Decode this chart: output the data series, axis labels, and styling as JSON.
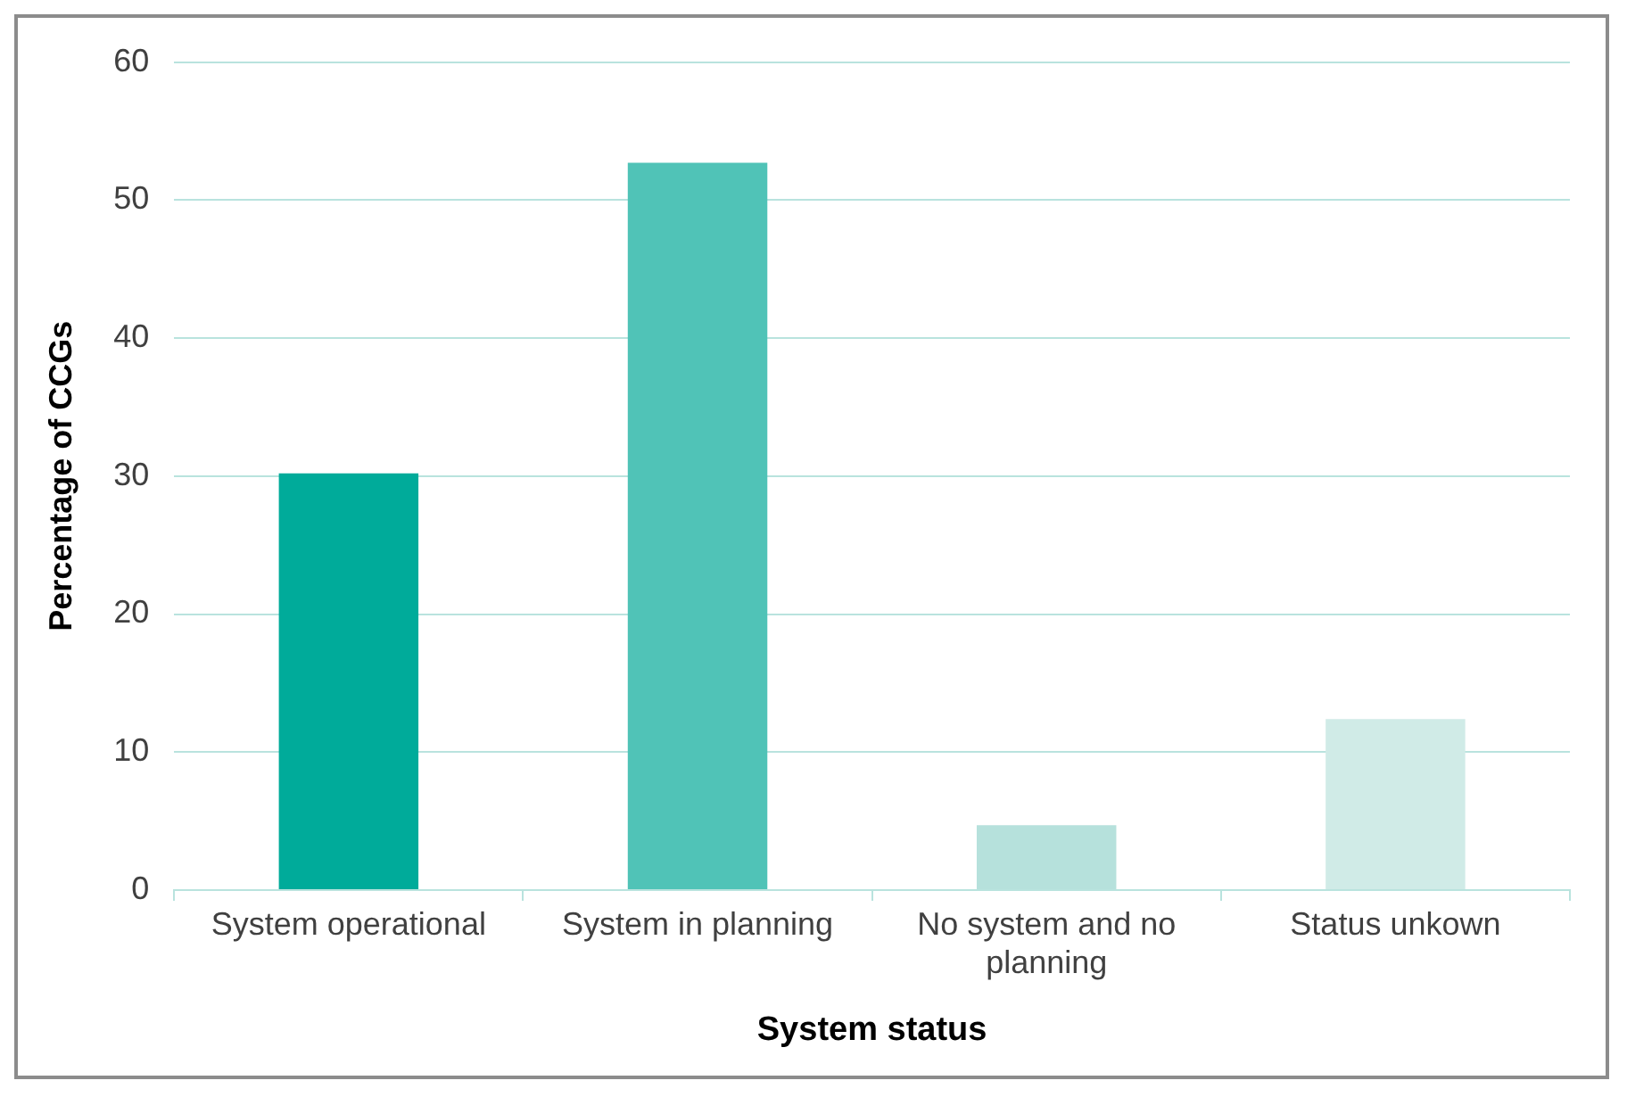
{
  "chart_data": {
    "type": "bar",
    "xlabel": "System status",
    "ylabel": "Percentage of CCGs",
    "categories": [
      "System operational",
      "System in planning",
      "No system and no planning",
      "Status unkown"
    ],
    "values": [
      30.2,
      52.7,
      4.7,
      12.4
    ],
    "colors": [
      "#00ab9a",
      "#50c3b7",
      "#b6e1dc",
      "#d0ebe7"
    ],
    "ylim": [
      0,
      60
    ],
    "yticks": [
      0,
      10,
      20,
      30,
      40,
      50,
      60
    ],
    "grid": "y",
    "legend": false
  }
}
